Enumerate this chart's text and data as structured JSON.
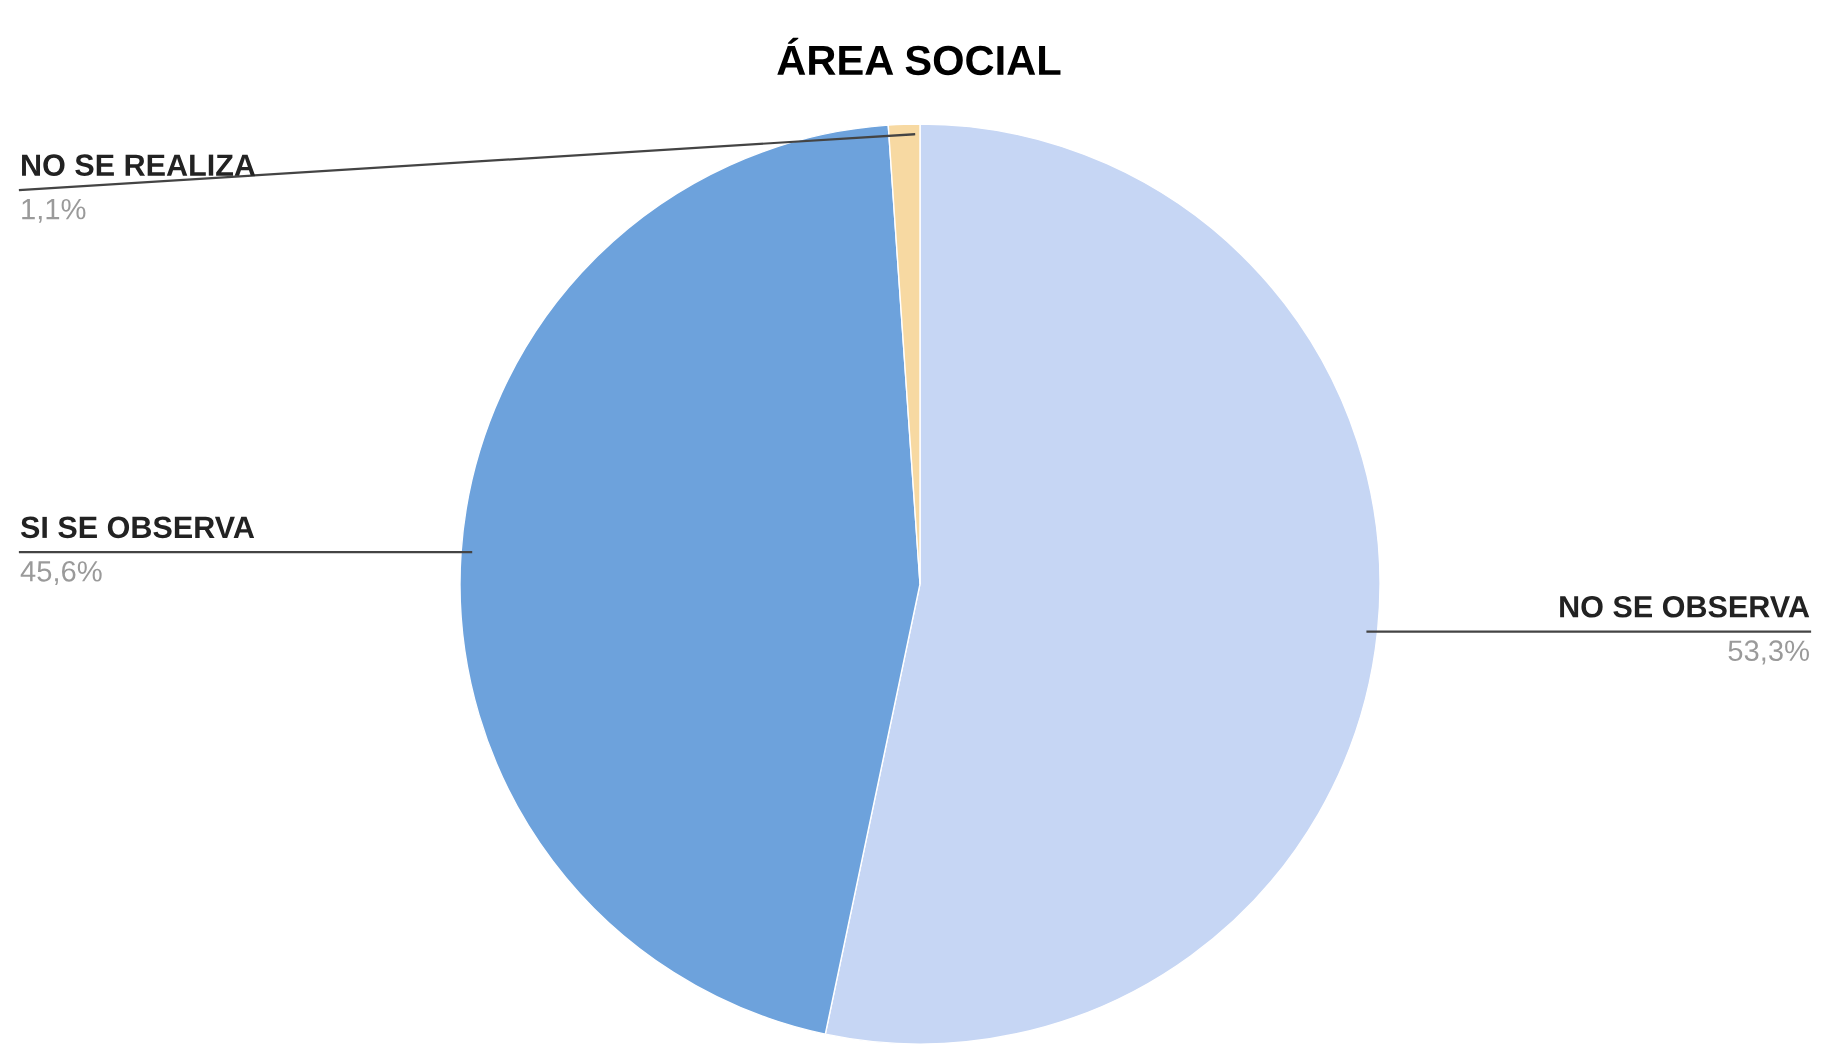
{
  "chart_data": {
    "type": "pie",
    "title": "ÁREA SOCIAL",
    "categories": [
      "NO SE OBSERVA",
      "SI SE OBSERVA",
      "NO SE REALIZA"
    ],
    "values": [
      53.3,
      45.6,
      1.1
    ],
    "value_labels": [
      "53,3%",
      "45,6%",
      "1,1%"
    ],
    "colors": [
      "#c6d6f4",
      "#6da2dc",
      "#f7d9a2"
    ]
  }
}
